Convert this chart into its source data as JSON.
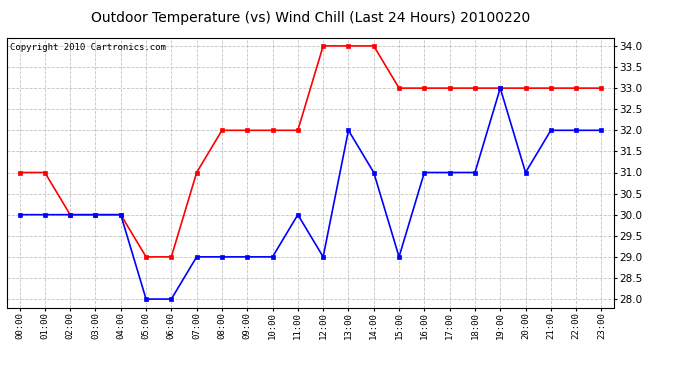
{
  "title": "Outdoor Temperature (vs) Wind Chill (Last 24 Hours) 20100220",
  "copyright_text": "Copyright 2010 Cartronics.com",
  "hours": [
    "00:00",
    "01:00",
    "02:00",
    "03:00",
    "04:00",
    "05:00",
    "06:00",
    "07:00",
    "08:00",
    "09:00",
    "10:00",
    "11:00",
    "12:00",
    "13:00",
    "14:00",
    "15:00",
    "16:00",
    "17:00",
    "18:00",
    "19:00",
    "20:00",
    "21:00",
    "22:00",
    "23:00"
  ],
  "red_data": [
    31.0,
    31.0,
    30.0,
    30.0,
    30.0,
    29.0,
    29.0,
    31.0,
    32.0,
    32.0,
    32.0,
    32.0,
    34.0,
    34.0,
    34.0,
    33.0,
    33.0,
    33.0,
    33.0,
    33.0,
    33.0,
    33.0,
    33.0,
    33.0
  ],
  "blue_data": [
    30.0,
    30.0,
    30.0,
    30.0,
    30.0,
    28.0,
    28.0,
    29.0,
    29.0,
    29.0,
    29.0,
    30.0,
    29.0,
    32.0,
    31.0,
    29.0,
    31.0,
    31.0,
    31.0,
    33.0,
    31.0,
    32.0,
    32.0,
    32.0
  ],
  "ylim": [
    27.8,
    34.2
  ],
  "yticks": [
    28.0,
    28.5,
    29.0,
    29.5,
    30.0,
    30.5,
    31.0,
    31.5,
    32.0,
    32.5,
    33.0,
    33.5,
    34.0
  ],
  "red_color": "#ff0000",
  "blue_color": "#0000ff",
  "bg_color": "#ffffff",
  "grid_color": "#aaaaaa",
  "title_fontsize": 10,
  "copyright_fontsize": 6.5
}
